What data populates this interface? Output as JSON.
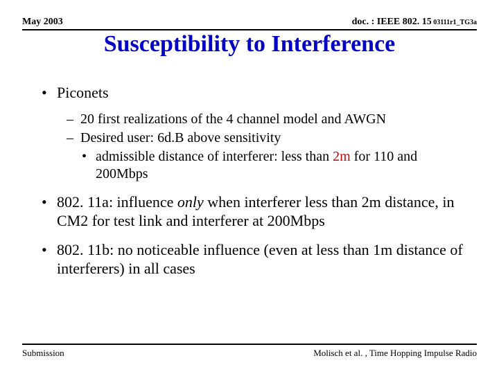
{
  "header": {
    "left": "May 2003",
    "right_prefix": "doc. : IEEE 802. 15",
    "right_suffix": " 03111r1_TG3a"
  },
  "title": "Susceptibility to Interference",
  "bullets": {
    "piconets": {
      "label": "Piconets",
      "sub1": "20 first realizations of the 4 channel model and AWGN",
      "sub2": "Desired user: 6d.B above sensitivity",
      "sub3a": "admissible distance of interferer: less than ",
      "sub3b": "2m",
      "sub3c": " for 110 and 200Mbps"
    },
    "w11a": {
      "prefix": "802. 11a: influence ",
      "only": "only",
      "rest": " when interferer less than 2m distance, in CM2 for test link and interferer at 200Mbps"
    },
    "w11b": "802. 11b: no noticeable influence (even at less than 1m distance of interferers) in all cases"
  },
  "footer": {
    "left": "Submission",
    "right": "Molisch et al. , Time Hopping Impulse Radio"
  },
  "colors": {
    "title": "#0202c4",
    "accent": "#cc0000",
    "text": "#000000",
    "background": "#ffffff"
  },
  "fonts": {
    "family": "Times New Roman",
    "title_size_pt": 26,
    "body_size_pt": 17,
    "sub_size_pt": 15,
    "header_size_pt": 11,
    "footer_size_pt": 10
  }
}
